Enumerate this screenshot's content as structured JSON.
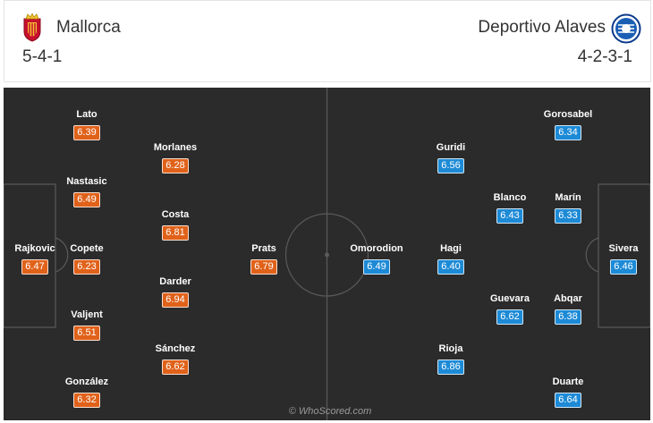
{
  "home": {
    "name": "Mallorca",
    "formation": "5-4-1",
    "crest_icon": "mallorca-crest-icon",
    "rating_color": "#e0621a",
    "players": [
      {
        "name": "Lato",
        "rating": "6.39"
      },
      {
        "name": "Morlanes",
        "rating": "6.28"
      },
      {
        "name": "Nastasic",
        "rating": "6.49"
      },
      {
        "name": "Costa",
        "rating": "6.81"
      },
      {
        "name": "Rajkovic",
        "rating": "6.47"
      },
      {
        "name": "Copete",
        "rating": "6.23"
      },
      {
        "name": "Prats",
        "rating": "6.79"
      },
      {
        "name": "Darder",
        "rating": "6.94"
      },
      {
        "name": "Valjent",
        "rating": "6.51"
      },
      {
        "name": "Sánchez",
        "rating": "6.62"
      },
      {
        "name": "González",
        "rating": "6.32"
      }
    ]
  },
  "away": {
    "name": "Deportivo Alaves",
    "formation": "4-2-3-1",
    "crest_icon": "alaves-crest-icon",
    "rating_color": "#1d8ad6",
    "players": [
      {
        "name": "Gorosabel",
        "rating": "6.34"
      },
      {
        "name": "Guridi",
        "rating": "6.56"
      },
      {
        "name": "Blanco",
        "rating": "6.43"
      },
      {
        "name": "Marín",
        "rating": "6.33"
      },
      {
        "name": "Omorodion",
        "rating": "6.49"
      },
      {
        "name": "Hagi",
        "rating": "6.40"
      },
      {
        "name": "Sivera",
        "rating": "6.46"
      },
      {
        "name": "Guevara",
        "rating": "6.62"
      },
      {
        "name": "Abqar",
        "rating": "6.38"
      },
      {
        "name": "Rioja",
        "rating": "6.86"
      },
      {
        "name": "Duarte",
        "rating": "6.64"
      }
    ]
  },
  "watermark": "© WhoScored.com"
}
